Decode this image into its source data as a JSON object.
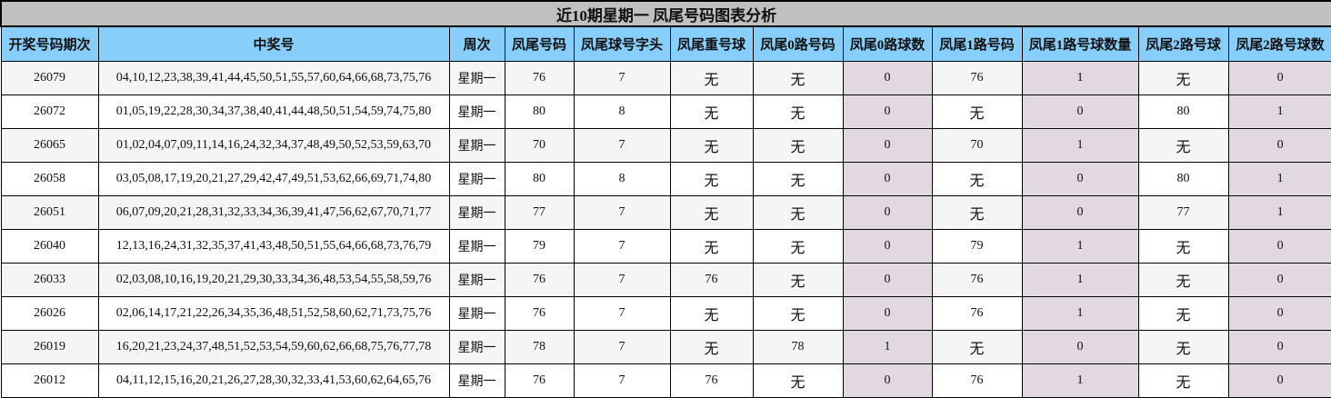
{
  "title": "近10期星期一 凤尾号码图表分析",
  "colors": {
    "title_bg": "#c0c0c0",
    "header_bg": "#87cefa",
    "shade": "#e2d8e2",
    "odd_row": "#f5f5f5"
  },
  "headers": [
    "开奖号码期次",
    "中奖号",
    "周次",
    "凤尾号码",
    "凤尾球号字头",
    "凤尾重号球",
    "凤尾0路号码",
    "凤尾0路球数",
    "凤尾1路号码",
    "凤尾1路号球数量",
    "凤尾2路号球",
    "凤尾2路号球数"
  ],
  "rows": [
    [
      "26079",
      "04,10,12,23,38,39,41,44,45,50,51,55,57,60,64,66,68,73,75,76",
      "星期一",
      "76",
      "7",
      "无",
      "无",
      "0",
      "76",
      "1",
      "无",
      "0"
    ],
    [
      "26072",
      "01,05,19,22,28,30,34,37,38,40,41,44,48,50,51,54,59,74,75,80",
      "星期一",
      "80",
      "8",
      "无",
      "无",
      "0",
      "无",
      "0",
      "80",
      "1"
    ],
    [
      "26065",
      "01,02,04,07,09,11,14,16,24,32,34,37,48,49,50,52,53,59,63,70",
      "星期一",
      "70",
      "7",
      "无",
      "无",
      "0",
      "70",
      "1",
      "无",
      "0"
    ],
    [
      "26058",
      "03,05,08,17,19,20,21,27,29,42,47,49,51,53,62,66,69,71,74,80",
      "星期一",
      "80",
      "8",
      "无",
      "无",
      "0",
      "无",
      "0",
      "80",
      "1"
    ],
    [
      "26051",
      "06,07,09,20,21,28,31,32,33,34,36,39,41,47,56,62,67,70,71,77",
      "星期一",
      "77",
      "7",
      "无",
      "无",
      "0",
      "无",
      "0",
      "77",
      "1"
    ],
    [
      "26040",
      "12,13,16,24,31,32,35,37,41,43,48,50,51,55,64,66,68,73,76,79",
      "星期一",
      "79",
      "7",
      "无",
      "无",
      "0",
      "79",
      "1",
      "无",
      "0"
    ],
    [
      "26033",
      "02,03,08,10,16,19,20,21,29,30,33,34,36,48,53,54,55,58,59,76",
      "星期一",
      "76",
      "7",
      "76",
      "无",
      "0",
      "76",
      "1",
      "无",
      "0"
    ],
    [
      "26026",
      "02,06,14,17,21,22,26,34,35,36,48,51,52,58,60,62,71,73,75,76",
      "星期一",
      "76",
      "7",
      "无",
      "无",
      "0",
      "76",
      "1",
      "无",
      "0"
    ],
    [
      "26019",
      "16,20,21,23,24,37,48,51,52,53,54,59,60,62,66,68,75,76,77,78",
      "星期一",
      "78",
      "7",
      "无",
      "78",
      "1",
      "无",
      "0",
      "无",
      "0"
    ],
    [
      "26012",
      "04,11,12,15,16,20,21,26,27,28,30,32,33,41,53,60,62,64,65,76",
      "星期一",
      "76",
      "7",
      "76",
      "无",
      "0",
      "76",
      "1",
      "无",
      "0"
    ]
  ]
}
